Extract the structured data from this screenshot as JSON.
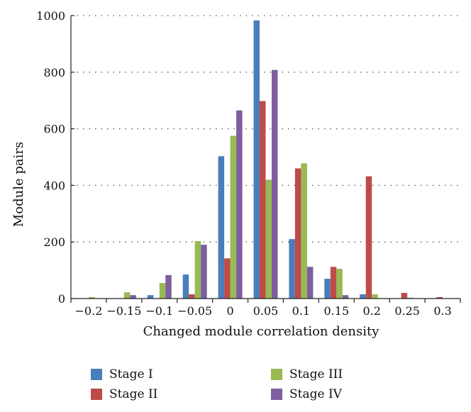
{
  "chart_data": {
    "type": "bar",
    "categories": [
      "−0.2",
      "−0.15",
      "−0.1",
      "−0.05",
      "0",
      "0.05",
      "0.1",
      "0.15",
      "0.2",
      "0.25",
      "0.3"
    ],
    "series": [
      {
        "name": "Stage I",
        "color": "#4a7ebb",
        "values": [
          0,
          0,
          12,
          85,
          503,
          983,
          210,
          70,
          15,
          0,
          0
        ]
      },
      {
        "name": "Stage II",
        "color": "#be4b48",
        "values": [
          0,
          0,
          0,
          15,
          142,
          698,
          460,
          112,
          432,
          20,
          5
        ]
      },
      {
        "name": "Stage III",
        "color": "#98b954",
        "values": [
          5,
          22,
          55,
          203,
          575,
          420,
          478,
          105,
          15,
          3,
          0
        ]
      },
      {
        "name": "Stage IV",
        "color": "#7d5fa0",
        "values": [
          0,
          12,
          83,
          190,
          665,
          808,
          112,
          12,
          0,
          0,
          0
        ]
      }
    ],
    "title": "",
    "xlabel": "Changed module correlation density",
    "ylabel": "Module pairs",
    "ylim": [
      0,
      1000
    ],
    "yticks": [
      0,
      200,
      400,
      600,
      800,
      1000
    ],
    "grid": "horizontal dotted",
    "legend_position": "bottom"
  }
}
